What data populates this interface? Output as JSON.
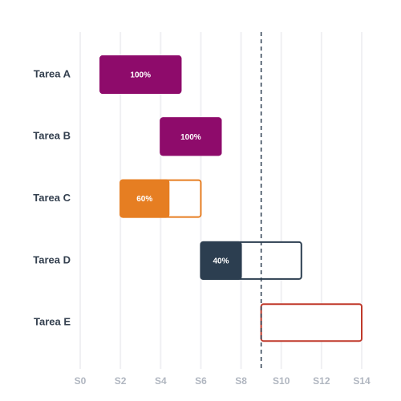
{
  "chart_data": {
    "type": "gantt",
    "categories": [
      "Tarea A",
      "Tarea B",
      "Tarea C",
      "Tarea D",
      "Tarea E"
    ],
    "start": [
      1,
      4,
      2,
      6,
      9
    ],
    "end": [
      5,
      7,
      6,
      11,
      14
    ],
    "values": [
      100,
      100,
      60,
      40,
      0
    ],
    "value_labels": [
      "100%",
      "100%",
      "60%",
      "40%",
      null
    ],
    "colors": [
      "#8e0b6b",
      "#8e0b6b",
      "#e67e22",
      "#2c3e50",
      "#c0392b"
    ],
    "xlim": [
      0,
      14
    ],
    "xticks": [
      {
        "value": 0,
        "label": "S0"
      },
      {
        "value": 2,
        "label": "S2"
      },
      {
        "value": 4,
        "label": "S4"
      },
      {
        "value": 6,
        "label": "S6"
      },
      {
        "value": 8,
        "label": "S8"
      },
      {
        "value": 10,
        "label": "S10"
      },
      {
        "value": 12,
        "label": "S12"
      },
      {
        "value": 14,
        "label": "S14"
      }
    ],
    "today": 9,
    "grid": true
  }
}
